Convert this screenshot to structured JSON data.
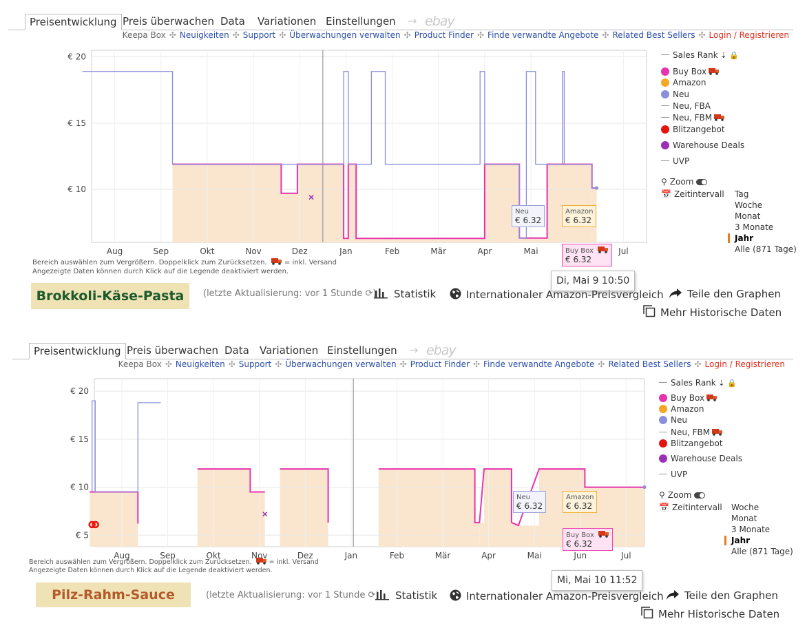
{
  "colors": {
    "buybox": "#e832ae",
    "amazon": "#f5a623",
    "neu": "#8a8fdc",
    "blitz": "#e8120c",
    "warehouse": "#9b2fb5",
    "fill": "#fae6cf",
    "link": "#2a4fa8",
    "login": "#e0301e"
  },
  "panels": [
    {
      "tabs": [
        "Preisentwicklung",
        "Preis überwachen",
        "Data",
        "Variationen",
        "Einstellungen",
        "→",
        "ebay"
      ],
      "links": [
        "Keepa Box",
        "Neuigkeiten",
        "Support",
        "Überwachungen verwalten",
        "Product Finder",
        "Finde verwandte Angebote",
        "Related Best Sellers",
        "Login / Registrieren"
      ],
      "legend": [
        {
          "label": "Sales Rank",
          "kind": "line",
          "suffix": "⇣ 🔒"
        },
        {
          "label": "Buy Box",
          "kind": "dot",
          "color": "buybox",
          "truck": true
        },
        {
          "label": "Amazon",
          "kind": "dot",
          "color": "amazon"
        },
        {
          "label": "Neu",
          "kind": "dot",
          "color": "neu"
        },
        {
          "label": "Neu, FBA",
          "kind": "line"
        },
        {
          "label": "Neu, FBM",
          "kind": "line",
          "truck": true
        },
        {
          "label": "Blitzangebot",
          "kind": "dot",
          "color": "blitz"
        },
        {
          "label": "Warehouse Deals",
          "kind": "dot",
          "color": "warehouse"
        },
        {
          "label": "UVP",
          "kind": "line"
        }
      ],
      "zoom_label": "Zoom",
      "interval_label": "Zeitintervall",
      "intervals": [
        "Tag",
        "Woche",
        "Monat",
        "3 Monate",
        "Jahr",
        "Alle (871 Tage)"
      ],
      "interval_selected": "Jahr",
      "note_line1": "Bereich auswählen zum Vergrößern. Doppelklick zum Zurücksetzen.",
      "note_truck": "= inkl. Versand",
      "note_line2": "Angezeigte Daten können durch Klick auf die Legende deaktiviert werden.",
      "tooltips": {
        "neu_label": "Neu",
        "neu_value": "€ 6.32",
        "amazon_label": "Amazon",
        "amazon_value": "€ 6.32",
        "buybox_label": "Buy Box",
        "buybox_value": "€ 6.32",
        "date": "Di, Mai 9 10:50"
      },
      "title": "Brokkoli-Käse-Pasta",
      "updated": "(letzte Aktualisierung: vor 1 Stunde",
      "actions": {
        "stats": "Statistik",
        "compare": "Internationaler Amazon-Preisvergleich",
        "share": "Teile den Graphen",
        "more": "Mehr Historische Daten"
      }
    },
    {
      "tabs": [
        "Preisentwicklung",
        "Preis überwachen",
        "Data",
        "Variationen",
        "Einstellungen",
        "→",
        "ebay"
      ],
      "links": [
        "Keepa Box",
        "Neuigkeiten",
        "Support",
        "Überwachungen verwalten",
        "Product Finder",
        "Finde verwandte Angebote",
        "Related Best Sellers",
        "Login / Registrieren"
      ],
      "legend": [
        {
          "label": "Sales Rank",
          "kind": "line",
          "suffix": "⇣ 🔒"
        },
        {
          "label": "Buy Box",
          "kind": "dot",
          "color": "buybox",
          "truck": true
        },
        {
          "label": "Amazon",
          "kind": "dot",
          "color": "amazon"
        },
        {
          "label": "Neu",
          "kind": "dot",
          "color": "neu"
        },
        {
          "label": "Neu, FBM",
          "kind": "line",
          "truck": true
        },
        {
          "label": "Blitzangebot",
          "kind": "dot",
          "color": "blitz"
        },
        {
          "label": "Warehouse Deals",
          "kind": "dot",
          "color": "warehouse"
        },
        {
          "label": "UVP",
          "kind": "line"
        }
      ],
      "zoom_label": "Zoom",
      "interval_label": "Zeitintervall",
      "intervals": [
        "Woche",
        "Monat",
        "3 Monate",
        "Jahr",
        "Alle (871 Tage)"
      ],
      "interval_selected": "Jahr",
      "note_line1": "Bereich auswählen zum Vergrößern. Doppelklick zum Zurücksetzen.",
      "note_truck": "= inkl. Versand",
      "note_line2": "Angezeigte Daten können durch Klick auf die Legende deaktiviert werden.",
      "tooltips": {
        "neu_label": "Neu",
        "neu_value": "€ 6.32",
        "amazon_label": "Amazon",
        "amazon_value": "€ 6.32",
        "buybox_label": "Buy Box",
        "buybox_value": "€ 6.32",
        "date": "Mi, Mai 10 11:52"
      },
      "title": "Pilz-Rahm-Sauce",
      "updated": "(letzte Aktualisierung: vor 1 Stunde",
      "actions": {
        "stats": "Statistik",
        "compare": "Internationaler Amazon-Preisvergleich",
        "share": "Teile den Graphen",
        "more": "Mehr Historische Daten"
      }
    }
  ],
  "chart_data": [
    {
      "type": "line",
      "xlabels": [
        "Aug",
        "Sep",
        "Okt",
        "Nov",
        "Dez",
        "Jan",
        "Feb",
        "Mär",
        "Apr",
        "Mai",
        "Jul"
      ],
      "ylabels": [
        "€ 20",
        "€ 15",
        "€ 10"
      ],
      "yticks": [
        20,
        15,
        10
      ],
      "ylim": [
        6,
        20.5
      ],
      "xlim": [
        0,
        12
      ],
      "grid": true,
      "series": [
        {
          "name": "Buy Box",
          "color": "buybox",
          "x": [
            1.75,
            4.1,
            4.1,
            4.45,
            4.45,
            5.45,
            5.45,
            5.55,
            5.55,
            5.72,
            5.72,
            8.4,
            8.4,
            8.5,
            8.5,
            9.25,
            9.25,
            9.85,
            9.85,
            10.82,
            10.82,
            10.92
          ],
          "y": [
            11.9,
            11.9,
            9.7,
            9.7,
            11.9,
            11.9,
            6.3,
            6.3,
            11.9,
            11.9,
            6.3,
            6.3,
            6.3,
            6.3,
            11.9,
            11.9,
            6.32,
            6.32,
            11.9,
            11.9,
            10.1,
            10.1
          ]
        },
        {
          "name": "Neu",
          "color": "neu",
          "x": [
            -0.2,
            1.75,
            1.75,
            5.45,
            5.45,
            5.55,
            5.55,
            6.05,
            6.05,
            6.35,
            6.35,
            8.4,
            8.4,
            8.5,
            8.5,
            9.25,
            9.25,
            9.4,
            9.4,
            9.6,
            9.6,
            10.18,
            10.18,
            10.22,
            10.22,
            10.82,
            10.82,
            10.92
          ],
          "y": [
            18.9,
            18.9,
            11.9,
            11.9,
            18.9,
            18.9,
            11.9,
            11.9,
            18.9,
            18.9,
            11.9,
            11.9,
            18.9,
            18.9,
            11.9,
            11.9,
            6.32,
            6.32,
            18.9,
            18.9,
            11.9,
            11.9,
            18.9,
            18.9,
            11.9,
            11.9,
            10.1,
            10.1
          ]
        },
        {
          "name": "Warehouse Deals",
          "color": "warehouse",
          "x": [
            4.75
          ],
          "y": [
            9.4
          ]
        }
      ]
    },
    {
      "type": "line",
      "xlabels": [
        "Aug",
        "Sep",
        "Okt",
        "Nov",
        "Dez",
        "Jan",
        "Feb",
        "Mär",
        "Apr",
        "Mai",
        "Jun",
        "Jul"
      ],
      "ylabels": [
        "€ 20",
        "€ 15",
        "€ 10",
        "€ 5"
      ],
      "yticks": [
        20,
        15,
        10,
        5
      ],
      "ylim": [
        3.8,
        21.3
      ],
      "xlim": [
        0,
        12
      ],
      "grid": true,
      "series": [
        {
          "name": "Buy Box",
          "color": "buybox",
          "x": [
            -0.1,
            0.95,
            0.95,
            1.1,
            2.25,
            3.4,
            3.4,
            3.7,
            3.7,
            3.72,
            3.72,
            3.9,
            3.9,
            4.05,
            4.05,
            5.1,
            5.1,
            5.2,
            6.2,
            8.3,
            8.3,
            8.4,
            8.5,
            9.1,
            9.1,
            9.25,
            9.7,
            10.5,
            10.5,
            10.7,
            10.7,
            12.0
          ],
          "y": [
            9.5,
            9.5,
            6.2,
            null,
            11.9,
            11.9,
            9.5,
            9.5,
            9.5,
            9.5,
            null,
            11.9,
            null,
            11.9,
            11.9,
            11.9,
            6.3,
            null,
            11.9,
            11.9,
            6.3,
            6.3,
            11.9,
            11.9,
            6.32,
            6.0,
            11.9,
            11.9,
            11.9,
            11.9,
            10.0,
            10.0
          ]
        },
        {
          "name": "Neu",
          "color": "neu",
          "x": [
            -0.05,
            -0.05,
            0.02,
            0.02,
            0.95,
            0.95,
            1.45
          ],
          "y": [
            9.5,
            19.0,
            19.0,
            9.5,
            9.5,
            18.8,
            18.8
          ]
        },
        {
          "name": "Warehouse Deals",
          "color": "warehouse",
          "x": [
            3.72
          ],
          "y": [
            7.2
          ]
        },
        {
          "name": "Blitzangebot",
          "color": "blitz",
          "x": [
            -0.05
          ],
          "y": [
            6.1
          ]
        }
      ]
    }
  ]
}
